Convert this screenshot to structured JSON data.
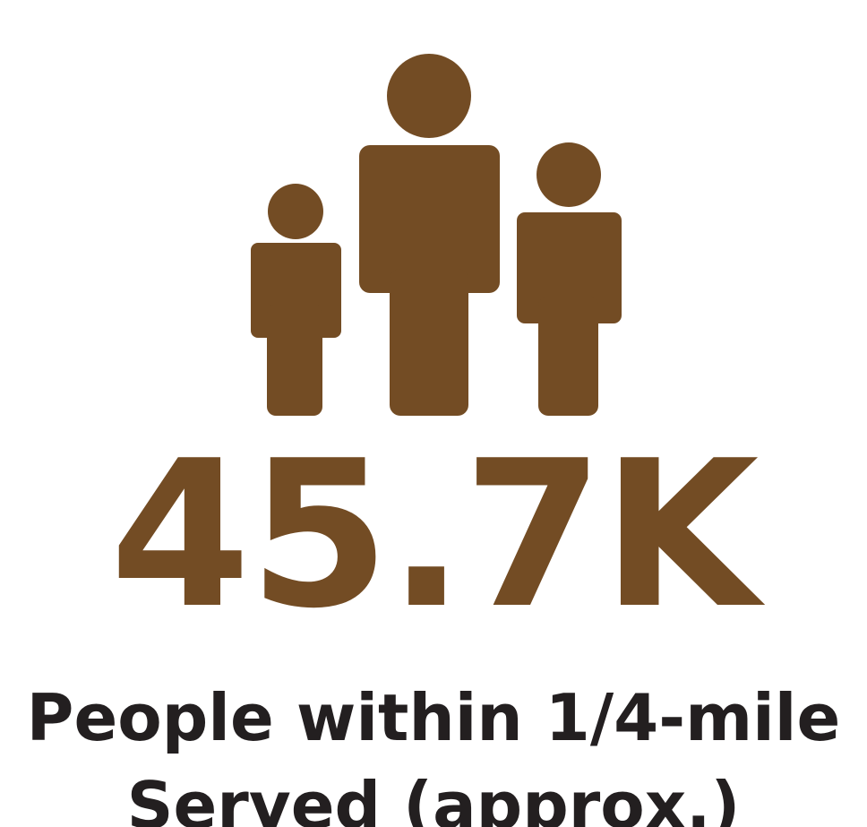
{
  "stat": {
    "value": "45.7K",
    "caption_line1": "People within 1/4-mile",
    "caption_line2": "Served (approx.)"
  },
  "icon": {
    "name": "people-group-icon"
  },
  "colors": {
    "accent": "#734c24",
    "caption_text": "#231f20",
    "background": "#ffffff"
  }
}
